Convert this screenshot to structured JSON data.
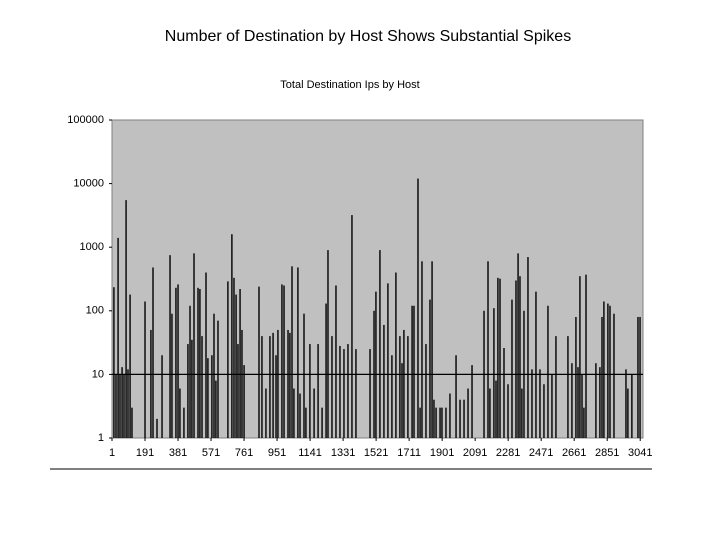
{
  "chart_data": {
    "type": "bar",
    "title": "Number of Destination by Host Shows Substantial Spikes",
    "subtitle": "Total Destination Ips by Host",
    "x": [
      12,
      24,
      36,
      47,
      59,
      70,
      82,
      93,
      105,
      116,
      191,
      225,
      237,
      260,
      289,
      335,
      346,
      369,
      381,
      392,
      415,
      438,
      450,
      461,
      473,
      496,
      507,
      519,
      542,
      553,
      576,
      588,
      599,
      611,
      668,
      691,
      703,
      715,
      726,
      738,
      749,
      761,
      847,
      864,
      887,
      910,
      928,
      945,
      956,
      979,
      991,
      1014,
      1025,
      1037,
      1048,
      1071,
      1083,
      1106,
      1117,
      1140,
      1164,
      1187,
      1210,
      1233,
      1244,
      1267,
      1290,
      1313,
      1336,
      1359,
      1382,
      1405,
      1486,
      1509,
      1520,
      1543,
      1566,
      1589,
      1612,
      1635,
      1658,
      1670,
      1681,
      1704,
      1728,
      1739,
      1762,
      1774,
      1785,
      1808,
      1831,
      1843,
      1854,
      1866,
      1889,
      1900,
      1923,
      1946,
      1981,
      2004,
      2027,
      2050,
      2073,
      2142,
      2165,
      2176,
      2199,
      2211,
      2222,
      2234,
      2257,
      2280,
      2303,
      2326,
      2338,
      2349,
      2360,
      2372,
      2395,
      2418,
      2441,
      2464,
      2487,
      2510,
      2533,
      2556,
      2625,
      2648,
      2671,
      2683,
      2694,
      2706,
      2717,
      2729,
      2786,
      2809,
      2821,
      2832,
      2855,
      2867,
      2890,
      2959,
      2970,
      2993,
      3028,
      3040
    ],
    "values": [
      235,
      10,
      1400,
      10,
      13,
      10,
      5500,
      12,
      180,
      3,
      140,
      50,
      480,
      2,
      20,
      750,
      90,
      230,
      260,
      6,
      3,
      30,
      120,
      35,
      800,
      230,
      220,
      40,
      400,
      18,
      20,
      90,
      8,
      70,
      290,
      1600,
      330,
      180,
      30,
      220,
      50,
      14,
      240,
      40,
      6,
      40,
      45,
      20,
      50,
      260,
      250,
      50,
      45,
      500,
      6,
      480,
      5,
      90,
      3,
      30,
      6,
      30,
      3,
      130,
      900,
      40,
      250,
      28,
      25,
      30,
      3200,
      25,
      25,
      100,
      200,
      900,
      60,
      270,
      20,
      400,
      40,
      15,
      50,
      40,
      120,
      120,
      12000,
      3,
      600,
      30,
      150,
      600,
      4,
      3,
      3,
      3,
      3,
      5,
      20,
      4,
      4,
      6,
      14,
      100,
      600,
      6,
      110,
      8,
      330,
      320,
      26,
      7,
      150,
      300,
      800,
      350,
      6,
      100,
      700,
      12,
      200,
      12,
      7,
      120,
      10,
      40,
      40,
      15,
      80,
      13,
      350,
      10,
      3,
      370,
      15,
      13,
      80,
      140,
      130,
      120,
      90,
      12,
      6,
      10,
      80,
      80
    ],
    "color": "#000000",
    "background": "#c0c0c0",
    "log_y": true,
    "ylim": [
      1,
      100000
    ],
    "yticks": [
      1,
      10,
      100,
      1000,
      10000,
      100000
    ],
    "xlim": [
      1,
      3057
    ],
    "xticks": [
      1,
      191,
      381,
      571,
      761,
      951,
      1141,
      1331,
      1521,
      1711,
      1901,
      2091,
      2281,
      2471,
      2661,
      2851,
      3041
    ],
    "hline": 10
  }
}
